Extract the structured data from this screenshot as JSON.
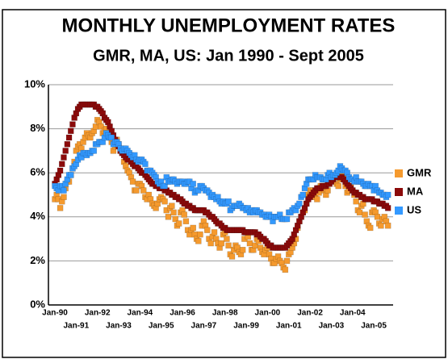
{
  "chart_data": {
    "type": "scatter",
    "title": "MONTHLY UNEMPLOYMENT RATES",
    "subtitle": "GMR, MA, US: Jan 1990 - Sept 2005",
    "categories": [
      "Jan-90",
      null,
      null,
      null,
      null,
      null,
      null,
      null,
      null,
      null,
      null,
      null,
      "Jan-91",
      null,
      null,
      null,
      null,
      null,
      null,
      null,
      null,
      null,
      null,
      null,
      "Jan-92",
      null,
      null,
      null,
      null,
      null,
      null,
      null,
      null,
      null,
      null,
      null,
      "Jan-93",
      null,
      null,
      null,
      null,
      null,
      null,
      null,
      null,
      null,
      null,
      null,
      "Jan-94",
      null,
      null,
      null,
      null,
      null,
      null,
      null,
      null,
      null,
      null,
      null,
      "Jan-95",
      null,
      null,
      null,
      null,
      null,
      null,
      null,
      null,
      null,
      null,
      null,
      "Jan-96",
      null,
      null,
      null,
      null,
      null,
      null,
      null,
      null,
      null,
      null,
      null,
      "Jan-97",
      null,
      null,
      null,
      null,
      null,
      null,
      null,
      null,
      null,
      null,
      null,
      "Jan-98",
      null,
      null,
      null,
      null,
      null,
      null,
      null,
      null,
      null,
      null,
      null,
      "Jan-99",
      null,
      null,
      null,
      null,
      null,
      null,
      null,
      null,
      null,
      null,
      null,
      "Jan-00",
      null,
      null,
      null,
      null,
      null,
      null,
      null,
      null,
      null,
      null,
      null,
      "Jan-01",
      null,
      null,
      null,
      null,
      null,
      null,
      null,
      null,
      null,
      null,
      null,
      "Jan-02",
      null,
      null,
      null,
      null,
      null,
      null,
      null,
      null,
      null,
      null,
      null,
      "Jan-03",
      null,
      null,
      null,
      null,
      null,
      null,
      null,
      null,
      null,
      null,
      null,
      "Jan-04",
      null,
      null,
      null,
      null,
      null,
      null,
      null,
      null,
      null,
      null,
      null,
      "Jan-05",
      null,
      null,
      null,
      null,
      null,
      null,
      null,
      null
    ],
    "series": [
      {
        "name": "GMR",
        "color": "#f59a2e",
        "values": [
          4.8,
          5.0,
          4.8,
          4.4,
          4.7,
          4.9,
          5.3,
          5.6,
          5.6,
          5.9,
          6.2,
          6.5,
          7.0,
          7.2,
          7.3,
          7.1,
          7.4,
          7.6,
          7.8,
          7.7,
          7.6,
          7.8,
          7.9,
          8.1,
          8.4,
          8.3,
          8.1,
          7.8,
          7.9,
          8.0,
          7.8,
          7.6,
          7.4,
          7.0,
          7.2,
          7.5,
          7.3,
          7.0,
          6.9,
          6.5,
          6.3,
          6.1,
          6.0,
          5.8,
          5.6,
          5.2,
          5.2,
          5.5,
          5.5,
          5.4,
          5.2,
          4.9,
          4.8,
          5.0,
          4.8,
          4.6,
          4.5,
          4.4,
          4.6,
          4.8,
          4.9,
          4.8,
          4.7,
          4.3,
          4.0,
          4.4,
          4.5,
          4.2,
          3.9,
          3.6,
          3.7,
          4.2,
          4.3,
          4.1,
          3.8,
          3.4,
          3.2,
          3.4,
          3.5,
          3.2,
          3.0,
          2.9,
          3.2,
          3.6,
          3.8,
          3.6,
          3.4,
          3.0,
          2.8,
          3.1,
          3.3,
          3.0,
          2.8,
          2.6,
          2.8,
          3.2,
          3.3,
          3.0,
          2.7,
          2.3,
          2.2,
          2.5,
          2.7,
          2.6,
          2.4,
          2.3,
          2.5,
          3.0,
          3.3,
          3.1,
          2.8,
          2.5,
          2.5,
          2.7,
          3.0,
          2.9,
          2.6,
          2.4,
          2.3,
          2.5,
          2.6,
          2.3,
          2.1,
          1.9,
          1.9,
          2.1,
          2.2,
          2.0,
          1.9,
          1.7,
          1.6,
          2.0,
          2.3,
          2.4,
          2.6,
          2.8,
          3.0,
          3.5,
          3.8,
          4.0,
          4.2,
          4.3,
          4.6,
          5.0,
          5.2,
          5.2,
          5.2,
          4.9,
          4.8,
          5.1,
          5.4,
          5.4,
          5.2,
          5.0,
          5.2,
          5.6,
          5.8,
          5.8,
          5.8,
          5.5,
          5.4,
          5.7,
          5.9,
          5.8,
          5.4,
          5.1,
          5.2,
          5.4,
          5.2,
          5.0,
          4.7,
          4.3,
          4.2,
          4.5,
          4.6,
          4.1,
          3.8,
          3.6,
          3.5,
          4.2,
          4.3,
          4.2,
          4.0,
          3.7,
          3.6,
          3.9,
          4.0,
          3.8,
          3.6
        ]
      },
      {
        "name": "MA",
        "color": "#8b0a0a",
        "values": [
          5.5,
          5.7,
          5.9,
          6.1,
          6.4,
          6.7,
          7.0,
          7.3,
          7.6,
          7.9,
          8.2,
          8.5,
          8.7,
          8.9,
          9.0,
          9.1,
          9.1,
          9.1,
          9.1,
          9.1,
          9.1,
          9.1,
          9.1,
          9.0,
          9.0,
          8.9,
          8.8,
          8.7,
          8.5,
          8.4,
          8.3,
          8.1,
          7.9,
          7.7,
          7.5,
          7.3,
          7.2,
          7.0,
          6.9,
          6.8,
          6.7,
          6.6,
          6.6,
          6.5,
          6.4,
          6.3,
          6.3,
          6.2,
          6.1,
          6.0,
          6.0,
          5.9,
          5.8,
          5.7,
          5.6,
          5.5,
          5.5,
          5.4,
          5.4,
          5.3,
          5.3,
          5.3,
          5.2,
          5.2,
          5.1,
          5.1,
          5.0,
          5.0,
          4.9,
          4.9,
          4.8,
          4.8,
          4.7,
          4.6,
          4.6,
          4.5,
          4.5,
          4.4,
          4.4,
          4.3,
          4.3,
          4.3,
          4.3,
          4.3,
          4.3,
          4.2,
          4.2,
          4.1,
          4.0,
          4.0,
          3.9,
          3.8,
          3.7,
          3.7,
          3.6,
          3.5,
          3.5,
          3.4,
          3.4,
          3.4,
          3.4,
          3.4,
          3.4,
          3.4,
          3.4,
          3.4,
          3.4,
          3.3,
          3.3,
          3.3,
          3.3,
          3.3,
          3.3,
          3.3,
          3.2,
          3.2,
          3.1,
          3.0,
          3.0,
          2.9,
          2.8,
          2.7,
          2.7,
          2.6,
          2.6,
          2.6,
          2.6,
          2.6,
          2.6,
          2.6,
          2.6,
          2.7,
          2.8,
          2.9,
          3.0,
          3.2,
          3.4,
          3.6,
          3.8,
          4.0,
          4.2,
          4.4,
          4.6,
          4.8,
          4.9,
          5.0,
          5.1,
          5.2,
          5.3,
          5.3,
          5.3,
          5.4,
          5.4,
          5.4,
          5.5,
          5.5,
          5.6,
          5.7,
          5.8,
          5.8,
          5.8,
          5.8,
          5.8,
          5.7,
          5.6,
          5.5,
          5.4,
          5.3,
          5.2,
          5.1,
          5.1,
          5.0,
          5.0,
          4.9,
          4.9,
          4.8,
          4.8,
          4.8,
          4.8,
          4.8,
          4.7,
          4.7,
          4.7,
          4.6,
          4.6,
          4.6,
          4.5,
          4.5,
          4.4
        ]
      },
      {
        "name": "US",
        "color": "#3399ff",
        "values": [
          5.4,
          5.3,
          5.2,
          5.4,
          5.4,
          5.2,
          5.5,
          5.7,
          5.9,
          5.9,
          6.2,
          6.3,
          6.4,
          6.6,
          6.8,
          6.7,
          6.9,
          6.9,
          6.8,
          6.9,
          6.9,
          7.0,
          7.0,
          7.3,
          7.3,
          7.4,
          7.4,
          7.4,
          7.6,
          7.8,
          7.7,
          7.6,
          7.6,
          7.3,
          7.4,
          7.4,
          7.3,
          7.1,
          7.0,
          7.1,
          7.1,
          7.0,
          6.9,
          6.8,
          6.7,
          6.8,
          6.6,
          6.5,
          6.6,
          6.6,
          6.5,
          6.4,
          6.1,
          6.1,
          6.1,
          6.0,
          5.9,
          5.8,
          5.6,
          5.5,
          5.6,
          5.4,
          5.4,
          5.8,
          5.6,
          5.6,
          5.7,
          5.7,
          5.6,
          5.5,
          5.6,
          5.6,
          5.6,
          5.5,
          5.5,
          5.6,
          5.6,
          5.3,
          5.5,
          5.1,
          5.2,
          5.2,
          5.4,
          5.4,
          5.3,
          5.2,
          5.2,
          5.1,
          4.9,
          5.0,
          4.9,
          4.8,
          4.9,
          4.7,
          4.6,
          4.7,
          4.6,
          4.6,
          4.7,
          4.3,
          4.4,
          4.5,
          4.5,
          4.5,
          4.6,
          4.5,
          4.4,
          4.4,
          4.3,
          4.4,
          4.2,
          4.3,
          4.2,
          4.3,
          4.3,
          4.2,
          4.2,
          4.1,
          4.1,
          4.0,
          4.0,
          4.1,
          4.0,
          3.8,
          4.0,
          4.0,
          4.0,
          4.1,
          3.9,
          3.9,
          3.9,
          3.9,
          4.2,
          4.2,
          4.3,
          4.4,
          4.3,
          4.5,
          4.6,
          4.9,
          5.0,
          5.3,
          5.5,
          5.7,
          5.7,
          5.7,
          5.7,
          5.9,
          5.8,
          5.8,
          5.8,
          5.7,
          5.7,
          5.7,
          5.9,
          6.0,
          5.8,
          5.9,
          5.9,
          6.0,
          6.1,
          6.3,
          6.2,
          6.1,
          6.1,
          6.0,
          5.8,
          5.7,
          5.7,
          5.6,
          5.8,
          5.6,
          5.6,
          5.6,
          5.5,
          5.4,
          5.4,
          5.5,
          5.4,
          5.4,
          5.2,
          5.4,
          5.2,
          5.1,
          5.1,
          5.0,
          5.0,
          4.9,
          5.0
        ]
      }
    ],
    "ylim": [
      0,
      10
    ],
    "yticks": [
      {
        "value": 0,
        "label": "0%"
      },
      {
        "value": 2,
        "label": "2%"
      },
      {
        "value": 4,
        "label": "4%"
      },
      {
        "value": 6,
        "label": "6%"
      },
      {
        "value": 8,
        "label": "8%"
      },
      {
        "value": 10,
        "label": "10%"
      }
    ],
    "grid": true,
    "legend": "right"
  }
}
